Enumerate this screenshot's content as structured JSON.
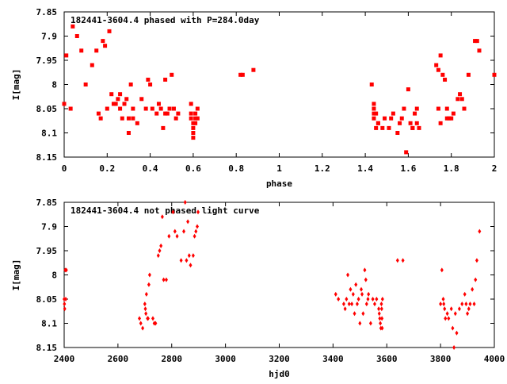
{
  "chart_data": [
    {
      "type": "scatter",
      "title": "182441-3604.4 phased with P=284.0day",
      "xlabel": "phase",
      "ylabel": "I[mag]",
      "xlim": [
        0,
        2
      ],
      "ylim": [
        7.85,
        8.15
      ],
      "y_inverted": true,
      "xticks": [
        0,
        0.2,
        0.4,
        0.6,
        0.8,
        1,
        1.2,
        1.4,
        1.6,
        1.8,
        2
      ],
      "xtick_labels": [
        "0",
        "0.2",
        "0.4",
        "0.6",
        "0.8",
        "1",
        "1.2",
        "1.4",
        "1.6",
        "1.8",
        "2"
      ],
      "yticks": [
        7.85,
        7.9,
        7.95,
        8,
        8.05,
        8.1,
        8.15
      ],
      "ytick_labels": [
        "7.85",
        "7.9",
        "7.95",
        "8",
        "8.05",
        "8.1",
        "8.15"
      ],
      "marker_color": "#ff0000",
      "grid": false,
      "series": [
        {
          "points": [
            [
              0.0,
              8.04
            ],
            [
              0.01,
              7.94
            ],
            [
              0.03,
              8.05
            ],
            [
              0.04,
              7.88
            ],
            [
              0.06,
              7.9
            ],
            [
              0.08,
              7.93
            ],
            [
              0.1,
              8.0
            ],
            [
              0.13,
              7.96
            ],
            [
              0.15,
              7.93
            ],
            [
              0.16,
              8.06
            ],
            [
              0.17,
              8.07
            ],
            [
              0.18,
              7.91
            ],
            [
              0.19,
              7.92
            ],
            [
              0.2,
              8.05
            ],
            [
              0.21,
              7.89
            ],
            [
              0.22,
              8.02
            ],
            [
              0.23,
              8.04
            ],
            [
              0.24,
              8.04
            ],
            [
              0.25,
              8.03
            ],
            [
              0.26,
              8.02
            ],
            [
              0.26,
              8.05
            ],
            [
              0.27,
              8.07
            ],
            [
              0.28,
              8.04
            ],
            [
              0.29,
              8.03
            ],
            [
              0.3,
              8.1
            ],
            [
              0.3,
              8.07
            ],
            [
              0.31,
              8.0
            ],
            [
              0.32,
              8.05
            ],
            [
              0.32,
              8.07
            ],
            [
              0.34,
              8.08
            ],
            [
              0.36,
              8.03
            ],
            [
              0.38,
              8.05
            ],
            [
              0.39,
              7.99
            ],
            [
              0.4,
              8.0
            ],
            [
              0.41,
              8.05
            ],
            [
              0.43,
              8.06
            ],
            [
              0.44,
              8.04
            ],
            [
              0.45,
              8.05
            ],
            [
              0.46,
              8.09
            ],
            [
              0.47,
              8.06
            ],
            [
              0.47,
              7.99
            ],
            [
              0.48,
              8.06
            ],
            [
              0.49,
              8.05
            ],
            [
              0.5,
              7.98
            ],
            [
              0.51,
              8.05
            ],
            [
              0.52,
              8.07
            ],
            [
              0.53,
              8.06
            ],
            [
              0.59,
              8.04
            ],
            [
              0.59,
              8.06
            ],
            [
              0.59,
              8.07
            ],
            [
              0.6,
              8.08
            ],
            [
              0.6,
              8.09
            ],
            [
              0.6,
              8.1
            ],
            [
              0.6,
              8.11
            ],
            [
              0.61,
              8.06
            ],
            [
              0.61,
              8.07
            ],
            [
              0.61,
              8.08
            ],
            [
              0.62,
              8.05
            ],
            [
              0.62,
              8.07
            ],
            [
              0.82,
              7.98
            ],
            [
              0.83,
              7.98
            ],
            [
              0.88,
              7.97
            ],
            [
              1.43,
              8.0
            ],
            [
              1.44,
              8.04
            ],
            [
              1.44,
              8.05
            ],
            [
              1.44,
              8.06
            ],
            [
              1.44,
              8.07
            ],
            [
              1.45,
              8.06
            ],
            [
              1.45,
              8.09
            ],
            [
              1.46,
              8.08
            ],
            [
              1.46,
              8.08
            ],
            [
              1.48,
              8.09
            ],
            [
              1.49,
              8.07
            ],
            [
              1.51,
              8.09
            ],
            [
              1.52,
              8.07
            ],
            [
              1.53,
              8.06
            ],
            [
              1.55,
              8.1
            ],
            [
              1.56,
              8.08
            ],
            [
              1.57,
              8.07
            ],
            [
              1.58,
              8.05
            ],
            [
              1.59,
              8.14
            ],
            [
              1.6,
              8.01
            ],
            [
              1.61,
              8.08
            ],
            [
              1.62,
              8.09
            ],
            [
              1.62,
              8.09
            ],
            [
              1.63,
              8.06
            ],
            [
              1.64,
              8.05
            ],
            [
              1.64,
              8.08
            ],
            [
              1.65,
              8.09
            ],
            [
              1.73,
              7.96
            ],
            [
              1.74,
              7.97
            ],
            [
              1.74,
              8.05
            ],
            [
              1.75,
              8.08
            ],
            [
              1.75,
              7.94
            ],
            [
              1.76,
              7.98
            ],
            [
              1.77,
              7.99
            ],
            [
              1.78,
              8.05
            ],
            [
              1.78,
              8.07
            ],
            [
              1.79,
              8.07
            ],
            [
              1.8,
              8.07
            ],
            [
              1.81,
              8.06
            ],
            [
              1.83,
              8.03
            ],
            [
              1.84,
              8.02
            ],
            [
              1.85,
              8.03
            ],
            [
              1.86,
              8.05
            ],
            [
              1.88,
              7.98
            ],
            [
              1.91,
              7.91
            ],
            [
              1.92,
              7.91
            ],
            [
              1.93,
              7.93
            ],
            [
              2.0,
              7.98
            ]
          ]
        }
      ]
    },
    {
      "type": "scatter",
      "title": "182441-3604.4 not phased light curve",
      "xlabel": "hjd0",
      "ylabel": "I[mag]",
      "xlim": [
        2400,
        4000
      ],
      "ylim": [
        7.85,
        8.15
      ],
      "y_inverted": true,
      "xticks": [
        2400,
        2600,
        2800,
        3000,
        3200,
        3400,
        3600,
        3800,
        4000
      ],
      "xtick_labels": [
        "2400",
        "2600",
        "2800",
        "3000",
        "3200",
        "3400",
        "3600",
        "3800",
        "4000"
      ],
      "yticks": [
        7.85,
        7.9,
        7.95,
        8,
        8.05,
        8.1,
        8.15
      ],
      "ytick_labels": [
        "7.85",
        "7.9",
        "7.95",
        "8",
        "8.05",
        "8.1",
        "8.15"
      ],
      "marker_color": "#ff0000",
      "grid": false,
      "series": [
        {
          "points": [
            [
              2400,
              8.05
            ],
            [
              2401,
              8.06
            ],
            [
              2402,
              8.07
            ],
            [
              2404,
              7.99
            ],
            [
              2406,
              8.05
            ],
            [
              2408,
              7.99
            ],
            [
              2680,
              8.09
            ],
            [
              2685,
              8.1
            ],
            [
              2692,
              8.11
            ],
            [
              2700,
              8.06
            ],
            [
              2702,
              8.07
            ],
            [
              2704,
              8.08
            ],
            [
              2706,
              8.04
            ],
            [
              2710,
              8.09
            ],
            [
              2712,
              8.09
            ],
            [
              2715,
              8.02
            ],
            [
              2718,
              8.0
            ],
            [
              2730,
              8.09
            ],
            [
              2735,
              8.1
            ],
            [
              2740,
              8.1
            ],
            [
              2750,
              7.96
            ],
            [
              2755,
              7.95
            ],
            [
              2760,
              7.94
            ],
            [
              2765,
              7.88
            ],
            [
              2770,
              8.01
            ],
            [
              2780,
              8.01
            ],
            [
              2790,
              7.92
            ],
            [
              2805,
              7.87
            ],
            [
              2812,
              7.91
            ],
            [
              2820,
              7.92
            ],
            [
              2835,
              7.97
            ],
            [
              2845,
              7.91
            ],
            [
              2850,
              7.85
            ],
            [
              2855,
              7.97
            ],
            [
              2860,
              7.89
            ],
            [
              2865,
              7.96
            ],
            [
              2870,
              7.98
            ],
            [
              2880,
              7.96
            ],
            [
              2885,
              7.92
            ],
            [
              2890,
              7.91
            ],
            [
              2895,
              7.9
            ],
            [
              2898,
              7.87
            ],
            [
              3410,
              8.04
            ],
            [
              3420,
              8.05
            ],
            [
              3440,
              8.06
            ],
            [
              3445,
              8.07
            ],
            [
              3450,
              8.05
            ],
            [
              3455,
              8.0
            ],
            [
              3460,
              8.06
            ],
            [
              3465,
              8.03
            ],
            [
              3470,
              8.06
            ],
            [
              3475,
              8.04
            ],
            [
              3480,
              8.08
            ],
            [
              3485,
              8.02
            ],
            [
              3490,
              8.06
            ],
            [
              3495,
              8.05
            ],
            [
              3500,
              8.1
            ],
            [
              3505,
              8.03
            ],
            [
              3508,
              8.04
            ],
            [
              3512,
              8.08
            ],
            [
              3518,
              7.99
            ],
            [
              3522,
              8.01
            ],
            [
              3525,
              8.06
            ],
            [
              3530,
              8.05
            ],
            [
              3532,
              8.04
            ],
            [
              3540,
              8.1
            ],
            [
              3548,
              8.05
            ],
            [
              3555,
              8.06
            ],
            [
              3562,
              8.05
            ],
            [
              3570,
              8.07
            ],
            [
              3572,
              8.08
            ],
            [
              3574,
              8.09
            ],
            [
              3576,
              8.1
            ],
            [
              3578,
              8.11
            ],
            [
              3580,
              8.06
            ],
            [
              3581,
              8.07
            ],
            [
              3582,
              8.09
            ],
            [
              3583,
              8.11
            ],
            [
              3584,
              8.05
            ],
            [
              3640,
              7.97
            ],
            [
              3660,
              7.97
            ],
            [
              3800,
              8.06
            ],
            [
              3805,
              7.99
            ],
            [
              3810,
              8.05
            ],
            [
              3812,
              8.06
            ],
            [
              3815,
              8.07
            ],
            [
              3818,
              8.09
            ],
            [
              3825,
              8.08
            ],
            [
              3830,
              8.09
            ],
            [
              3840,
              8.07
            ],
            [
              3845,
              8.11
            ],
            [
              3850,
              8.15
            ],
            [
              3855,
              8.08
            ],
            [
              3860,
              8.12
            ],
            [
              3870,
              8.07
            ],
            [
              3880,
              8.06
            ],
            [
              3890,
              8.04
            ],
            [
              3895,
              8.06
            ],
            [
              3900,
              8.08
            ],
            [
              3905,
              8.07
            ],
            [
              3910,
              8.06
            ],
            [
              3918,
              8.03
            ],
            [
              3925,
              8.06
            ],
            [
              3930,
              8.01
            ],
            [
              3935,
              7.97
            ],
            [
              3945,
              7.91
            ]
          ]
        }
      ]
    }
  ]
}
